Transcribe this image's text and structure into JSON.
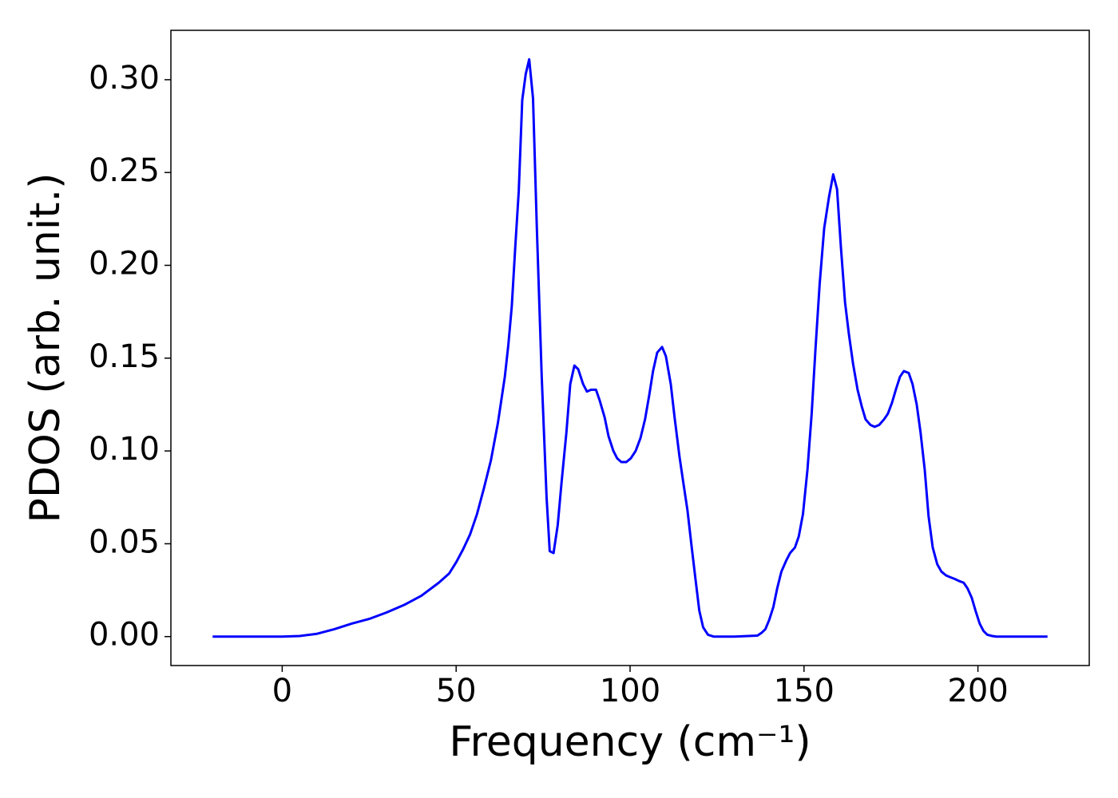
{
  "chart_data": {
    "type": "line",
    "xlabel": "Frequency (cm⁻¹)",
    "ylabel": "PDOS (arb. unit.)",
    "color": "#0000ff",
    "grid": false,
    "xlim": [
      -32,
      232
    ],
    "ylim": [
      -0.0156,
      0.3266
    ],
    "xticks": [
      0,
      50,
      100,
      150,
      200
    ],
    "yticks": [
      {
        "value": 0,
        "label": "0.00"
      },
      {
        "value": 0.05,
        "label": "0.05"
      },
      {
        "value": 0.1,
        "label": "0.10"
      },
      {
        "value": 0.15,
        "label": "0.15"
      },
      {
        "value": 0.2,
        "label": "0.20"
      },
      {
        "value": 0.25,
        "label": "0.25"
      },
      {
        "value": 0.3,
        "label": "0.30"
      }
    ],
    "x": [
      -20,
      -10,
      0,
      5,
      10,
      15,
      20,
      25,
      30,
      35,
      40,
      45,
      48,
      50,
      52,
      54,
      56,
      58,
      60,
      62,
      64,
      65,
      66,
      67,
      68,
      69,
      70,
      71,
      72.1,
      73.2,
      74.6,
      76,
      76.9,
      78,
      79.2,
      80.3,
      81.7,
      82.8,
      84,
      85.1,
      86.5,
      87.6,
      88.8,
      90.2,
      91.3,
      92.7,
      93.8,
      95.2,
      96.3,
      97.5,
      98.9,
      100.2,
      101.6,
      103,
      104.3,
      105.5,
      106.6,
      107.8,
      109.2,
      110.3,
      111.7,
      112.8,
      114.2,
      115.3,
      116.5,
      117.6,
      118.8,
      119.9,
      121,
      122.4,
      124,
      130,
      136.6,
      137.8,
      138.9,
      140,
      141.2,
      142.3,
      143.5,
      144.9,
      146,
      147.4,
      148.5,
      149.7,
      151,
      152.2,
      153.3,
      154.5,
      155.8,
      157.2,
      158.4,
      159.5,
      160.6,
      161.8,
      162.9,
      164.1,
      165.4,
      166.6,
      167.7,
      169.1,
      170.3,
      171.6,
      173,
      174.1,
      175.3,
      176.4,
      177.6,
      178.7,
      180.1,
      181.2,
      182.4,
      183.5,
      184.7,
      185.8,
      187,
      188.3,
      189.5,
      190.8,
      192,
      193.4,
      194.5,
      195.9,
      197,
      198.2,
      199.3,
      200.5,
      201.6,
      202.7,
      204.1,
      205.3,
      212,
      220
    ],
    "values": [
      0,
      0,
      0,
      0.0003,
      0.0015,
      0.004,
      0.007,
      0.0095,
      0.013,
      0.017,
      0.022,
      0.029,
      0.034,
      0.04,
      0.047,
      0.055,
      0.066,
      0.08,
      0.095,
      0.115,
      0.14,
      0.157,
      0.178,
      0.21,
      0.24,
      0.289,
      0.303,
      0.311,
      0.29,
      0.22,
      0.14,
      0.075,
      0.046,
      0.045,
      0.06,
      0.083,
      0.11,
      0.136,
      0.146,
      0.144,
      0.136,
      0.132,
      0.133,
      0.133,
      0.127,
      0.118,
      0.108,
      0.1,
      0.096,
      0.094,
      0.094,
      0.096,
      0.1,
      0.107,
      0.117,
      0.13,
      0.143,
      0.153,
      0.156,
      0.151,
      0.136,
      0.118,
      0.097,
      0.083,
      0.068,
      0.05,
      0.031,
      0.014,
      0.005,
      0.001,
      0,
      0,
      0.0005,
      0.002,
      0.004,
      0.009,
      0.016,
      0.026,
      0.035,
      0.041,
      0.045,
      0.048,
      0.054,
      0.066,
      0.09,
      0.12,
      0.155,
      0.19,
      0.22,
      0.237,
      0.249,
      0.241,
      0.21,
      0.18,
      0.163,
      0.147,
      0.133,
      0.124,
      0.117,
      0.114,
      0.113,
      0.114,
      0.117,
      0.12,
      0.126,
      0.133,
      0.14,
      0.143,
      0.142,
      0.136,
      0.125,
      0.11,
      0.09,
      0.065,
      0.048,
      0.039,
      0.035,
      0.033,
      0.032,
      0.031,
      0.03,
      0.029,
      0.026,
      0.021,
      0.014,
      0.007,
      0.003,
      0.001,
      0.0003,
      0,
      0,
      0
    ]
  }
}
